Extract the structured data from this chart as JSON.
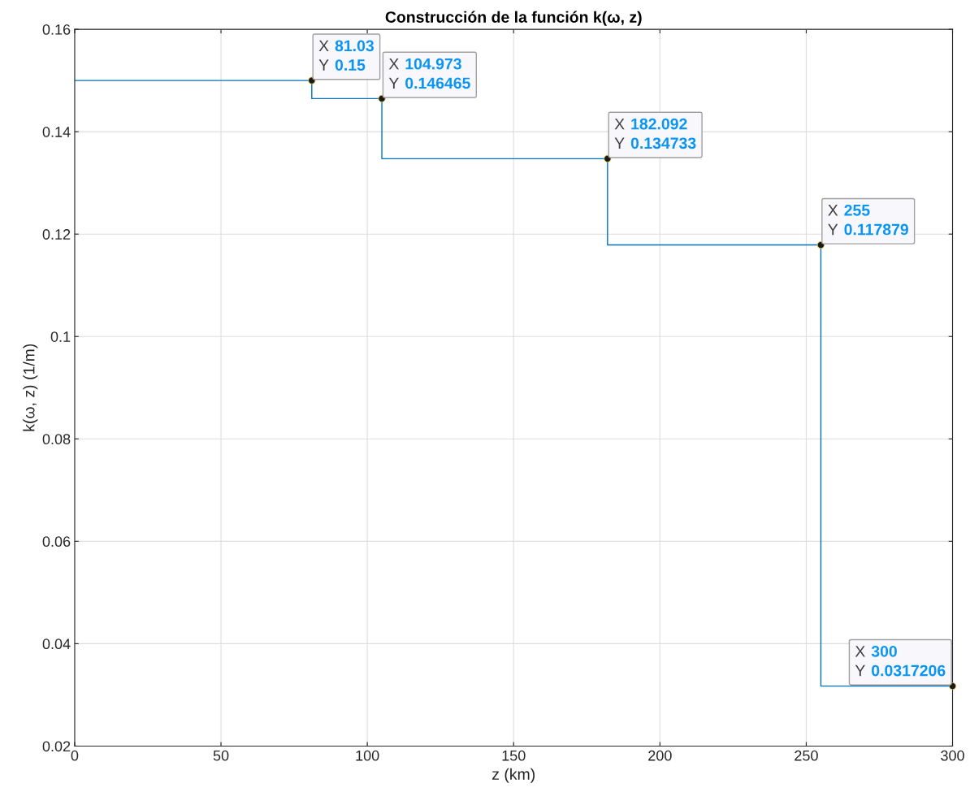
{
  "chart_data": {
    "type": "step",
    "title": "Construcción de la función k(ω, z)",
    "xlabel": "z (km)",
    "ylabel": "k(ω, z) (1/m)",
    "series": [
      {
        "color": "#0072bd",
        "x": [
          0,
          81.03,
          104.973,
          182.092,
          255,
          300
        ],
        "values": [
          0.15,
          0.146465,
          0.134733,
          0.117879,
          0.0317206,
          0.0317206
        ]
      }
    ],
    "annotations": [
      {
        "text": "X 81.03\nY 0.15",
        "x": 81.03,
        "y": 0.15
      },
      {
        "text": "X 104.973\nY 0.146465",
        "x": 104.973,
        "y": 0.146465
      },
      {
        "text": "X 182.092\nY 0.134733",
        "x": 182.092,
        "y": 0.134733
      },
      {
        "text": "X 255\nY 0.117879",
        "x": 255,
        "y": 0.117879
      },
      {
        "text": "X 300\nY 0.0317206",
        "x": 300,
        "y": 0.0317206
      }
    ],
    "xlim": [
      0,
      300
    ],
    "xticks": [
      0,
      50,
      100,
      150,
      200,
      250,
      300
    ],
    "ylim": [
      0.02,
      0.16
    ],
    "yticks": [
      0.02,
      0.04,
      0.06,
      0.08,
      0.1,
      0.12,
      0.14,
      0.16
    ],
    "grid": true,
    "line_style": "solid",
    "marker": "none"
  }
}
